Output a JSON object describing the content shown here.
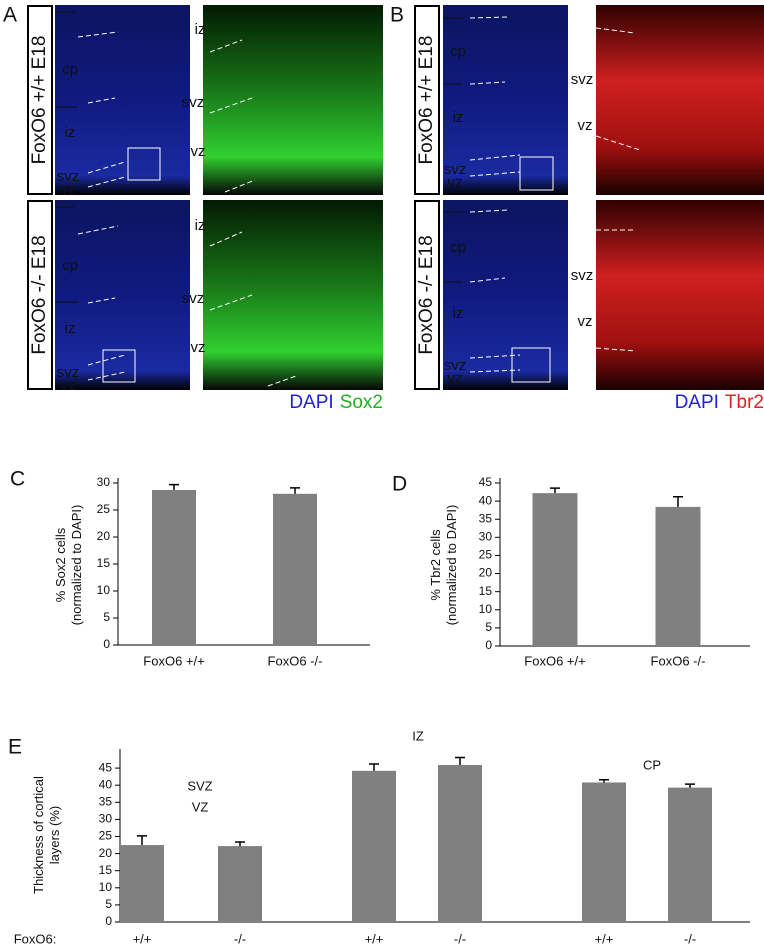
{
  "panels": {
    "A": {
      "label": "A",
      "rows": [
        {
          "genotype": "FoxO6 +/+ E18",
          "left_layers": [
            "cp",
            "iz",
            "svz",
            "vz"
          ],
          "right_layers": [
            "iz",
            "svz",
            "vz"
          ]
        },
        {
          "genotype": "FoxO6 -/- E18",
          "left_layers": [
            "cp",
            "iz",
            "svz",
            "vz"
          ],
          "right_layers": [
            "iz",
            "svz",
            "vz"
          ]
        }
      ],
      "stains": [
        {
          "text": "DAPI",
          "color": "#2020e0"
        },
        {
          "text": "Sox2",
          "color": "#20b020"
        }
      ]
    },
    "B": {
      "label": "B",
      "rows": [
        {
          "genotype": "FoxO6 +/+ E18",
          "left_layers": [
            "cp",
            "iz",
            "svz",
            "vz"
          ],
          "right_layers": [
            "svz",
            "vz"
          ]
        },
        {
          "genotype": "FoxO6 -/- E18",
          "left_layers": [
            "cp",
            "iz",
            "svz",
            "vz"
          ],
          "right_layers": [
            "svz",
            "vz"
          ]
        }
      ],
      "stains": [
        {
          "text": "DAPI",
          "color": "#2020e0"
        },
        {
          "text": "Tbr2",
          "color": "#e02020"
        }
      ]
    }
  },
  "chart_data": [
    {
      "type": "bar",
      "panel_label": "C",
      "y_label": [
        "% Sox2 cells",
        "(normalized to DAPI)"
      ],
      "categories": [
        "FoxO6 +/+",
        "FoxO6 -/-"
      ],
      "values": [
        28.7,
        28.0
      ],
      "errors": [
        1.0,
        1.1
      ],
      "color": "#808080",
      "ylim": [
        0,
        30
      ],
      "yticks": [
        0,
        5,
        10,
        15,
        20,
        25,
        30
      ]
    },
    {
      "type": "bar",
      "panel_label": "D",
      "y_label": [
        "% Tbr2 cells",
        "(normalized to DAPI)"
      ],
      "categories": [
        "FoxO6 +/+",
        "FoxO6 -/-"
      ],
      "values": [
        42.2,
        38.4
      ],
      "errors": [
        1.4,
        2.8
      ],
      "color": "#808080",
      "ylim": [
        0,
        45
      ],
      "yticks": [
        0,
        5,
        10,
        15,
        20,
        25,
        30,
        35,
        40,
        45
      ]
    },
    {
      "type": "bar",
      "panel_label": "E",
      "y_label": [
        "Thickness of cortical",
        "layers (%)"
      ],
      "x_prefix": "FoxO6:",
      "categories": [
        "+/+",
        "-/-",
        "+/+",
        "-/-",
        "+/+",
        "-/-"
      ],
      "group_labels": [
        [
          "SVZ",
          "VZ"
        ],
        [
          "IZ"
        ],
        [
          "CP"
        ]
      ],
      "values": [
        22.5,
        22.2,
        44.2,
        45.9,
        40.8,
        39.3
      ],
      "errors": [
        2.7,
        1.2,
        2.0,
        2.2,
        0.8,
        1.0
      ],
      "color": "#808080",
      "ylim": [
        0,
        50
      ],
      "yticks": [
        0,
        5,
        10,
        15,
        20,
        25,
        30,
        35,
        40,
        45
      ]
    }
  ]
}
